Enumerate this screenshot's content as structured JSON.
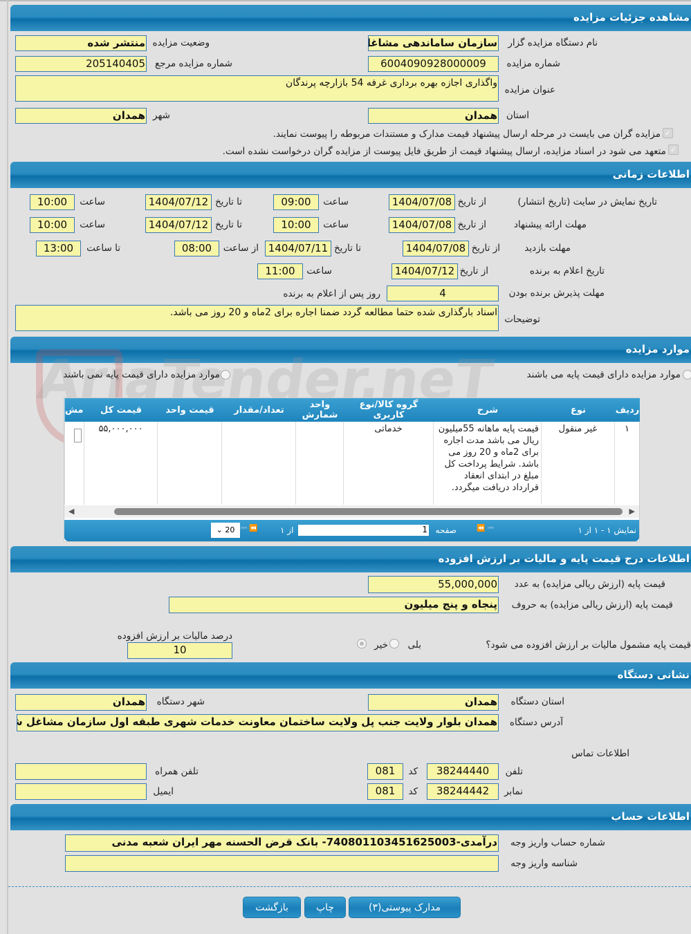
{
  "colors": {
    "header": "#2a8cc1",
    "field_bg": "#f7f5a6",
    "field_border": "#3a78b5",
    "page_bg": "#e1e1e1"
  },
  "watermark": "AriaTender.neT",
  "details": {
    "title": "مشاهده جزئیات مزایده",
    "org_label": "نام دستگاه مزایده گزار",
    "org_value": "سازمان ساماندهی مشاغل",
    "status_label": "وضعیت مزایده",
    "status_value": "منتشر شده",
    "number_label": "شماره مزایده",
    "number_value": "6004090928000009",
    "ref_label": "شماره مزایده مرجع",
    "ref_value": "205140405",
    "subject_label": "عنوان مزایده",
    "subject_value": "واگذاری اجازه بهره برداری غرفه 54 بازارچه پرندگان",
    "province_label": "استان",
    "province_value": "همدان",
    "city_label": "شهر",
    "city_value": "همدان",
    "check1": "مزایده گران می بایست در مرحله ارسال پیشنهاد قیمت مدارک و مستندات مربوطه را پیوست نمایند.",
    "check2": "متعهد می شود در اسناد مزایده، ارسال پیشنهاد قیمت از طریق فایل پیوست از مزایده گران درخواست نشده است."
  },
  "timing": {
    "title": "اطلاعات زمانی",
    "from_date": "از تاریخ",
    "to_date": "تا تاریخ",
    "time": "ساعت",
    "from_time": "از ساعت",
    "to_time": "تا ساعت",
    "publish": {
      "label": "تاریخ نمایش در سایت (تاریخ انتشار)",
      "from": "1404/07/08",
      "from_time": "09:00",
      "to": "1404/07/12",
      "to_time": "10:00"
    },
    "offer": {
      "label": "مهلت ارائه پیشنهاد",
      "from": "1404/07/08",
      "from_time": "10:00",
      "to": "1404/07/12",
      "to_time": "10:00"
    },
    "visit": {
      "label": "مهلت بازدید",
      "from": "1404/07/08",
      "to": "1404/07/11",
      "from_time": "08:00",
      "to_time": "13:00"
    },
    "announce": {
      "label": "تاریخ اعلام به برنده",
      "from": "1404/07/12",
      "time": "11:00"
    },
    "accept": {
      "label": "مهلت پذیرش برنده بودن",
      "value": "4",
      "suffix": "روز پس از اعلام به برنده"
    },
    "notes_label": "توضیحات",
    "notes_value": "اسناد بارگذاری شده حتما مطالعه گردد ضمنا اجاره برای 2ماه و 20 روز می باشد."
  },
  "items": {
    "title": "موارد مزایده",
    "radio_with_price": "موارد مزایده دارای قیمت پایه می باشند",
    "radio_without_price": "موارد مزایده دارای قیمت پایه نمی باشند",
    "columns": [
      "ردیف",
      "نوع",
      "شرح",
      "گروه کالا/نوع کاربری",
      "واحد شمارش",
      "تعداد/مقدار",
      "قیمت واحد",
      "قیمت کل",
      "مش"
    ],
    "rows": [
      {
        "row": "۱",
        "type": "غیر منقول",
        "desc": "قیمت پایه ماهانه 55میلیون ریال می باشد مدت اجاره برای 2ماه و 20 روز می باشد. شرایط پرداخت کل مبلغ در ابتدای انعقاد قرارداد دریافت میگردد.",
        "group": "خدماتی",
        "unit": "",
        "qty": "",
        "unit_price": "",
        "total": "۵۵,۰۰۰,۰۰۰"
      }
    ],
    "pager": {
      "showing": "نمایش ۱ - ۱ از ۱",
      "page_label": "صفحه",
      "page_value": "1",
      "of": "از ۱",
      "page_size": "20"
    }
  },
  "price": {
    "title": "اطلاعات درج قیمت پایه و مالیات بر ارزش افزوده",
    "num_label": "قیمت پایه (ارزش ریالی مزایده) به عدد",
    "num_value": "55,000,000",
    "words_label": "قیمت پایه (ارزش ریالی مزایده) به حروف",
    "words_value": "پنجاه و پنج میلیون",
    "vat_question": "قیمت پایه مشمول مالیات بر ارزش افزوده می شود؟",
    "yes": "بلی",
    "no": "خیر",
    "vat_percent_label": "درصد مالیات بر ارزش افزوده",
    "vat_percent_value": "10"
  },
  "address": {
    "title": "نشانی دستگاه",
    "province_label": "استان دستگاه",
    "province_value": "همدان",
    "city_label": "شهر دستگاه",
    "city_value": "همدان",
    "address_label": "آدرس دستگاه",
    "address_value": "همدان بلوار ولایت جنب پل ولایت ساختمان معاونت خدمات شهری طبقه اول سازمان مشاغل شهری",
    "contact_label": "اطلاعات تماس",
    "phone_label": "تلفن",
    "phone_value": "38244440",
    "code_label": "کد",
    "phone_code": "081",
    "fax_label": "نمابر",
    "fax_value": "38244442",
    "fax_code": "081",
    "mobile_label": "تلفن همراه",
    "mobile_value": "",
    "email_label": "ایمیل",
    "email_value": ""
  },
  "account": {
    "title": "اطلاعات حساب",
    "account_label": "شماره حساب واریز وجه",
    "account_value": "درآمدی-740801103451625003- بانک قرض الحسنه مهر ایران شعبه مدنی",
    "id_label": "شناسه واریز وجه",
    "id_value": ""
  },
  "buttons": {
    "attachments": "مدارک پیوستی(۳)",
    "print": "چاپ",
    "back": "بازگشت"
  }
}
